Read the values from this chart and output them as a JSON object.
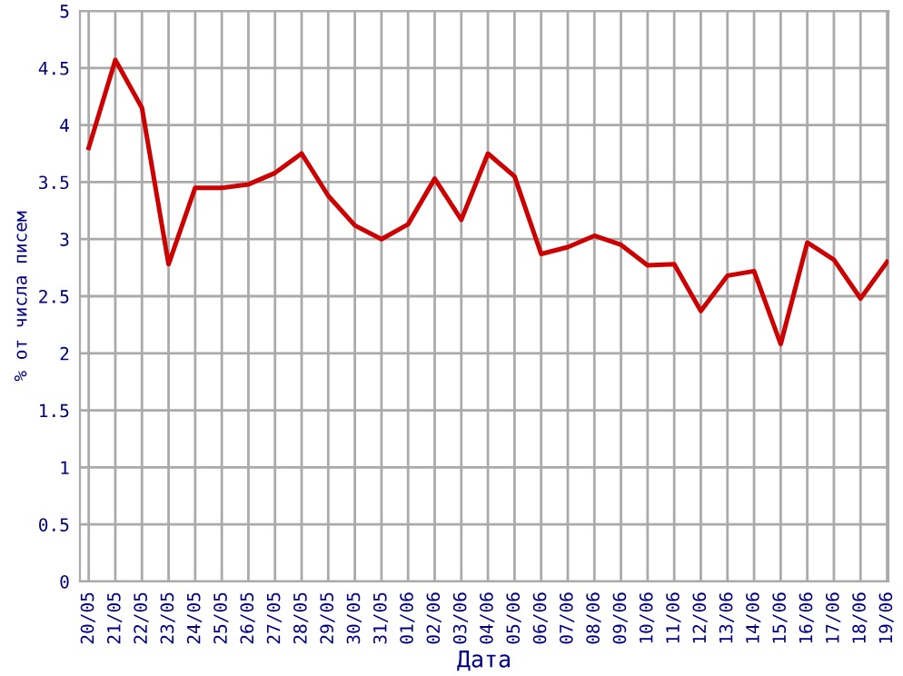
{
  "chart_data": {
    "type": "line",
    "xlabel": "Дата",
    "ylabel": "% от числа писем",
    "categories": [
      "20/05",
      "21/05",
      "22/05",
      "23/05",
      "24/05",
      "25/05",
      "26/05",
      "27/05",
      "28/05",
      "29/05",
      "30/05",
      "31/05",
      "01/06",
      "02/06",
      "03/06",
      "04/06",
      "05/06",
      "06/06",
      "07/06",
      "08/06",
      "09/06",
      "10/06",
      "11/06",
      "12/06",
      "13/06",
      "14/06",
      "15/06",
      "16/06",
      "17/06",
      "18/06",
      "19/06"
    ],
    "series": [
      {
        "color": "#cc0000",
        "values": [
          3.8,
          4.57,
          4.15,
          2.78,
          3.45,
          3.45,
          3.48,
          3.58,
          3.75,
          3.38,
          3.12,
          3.0,
          3.13,
          3.53,
          3.17,
          3.75,
          3.55,
          2.87,
          2.93,
          3.03,
          2.95,
          2.77,
          2.78,
          2.37,
          2.68,
          2.72,
          2.08,
          2.97,
          2.82,
          2.48,
          2.8
        ]
      }
    ],
    "ylim": [
      0,
      5
    ],
    "yticks": [
      0,
      0.5,
      1,
      1.5,
      2,
      2.5,
      3,
      3.5,
      4,
      4.5,
      5
    ],
    "grid": true,
    "marker": "none",
    "line_style": "solid"
  }
}
